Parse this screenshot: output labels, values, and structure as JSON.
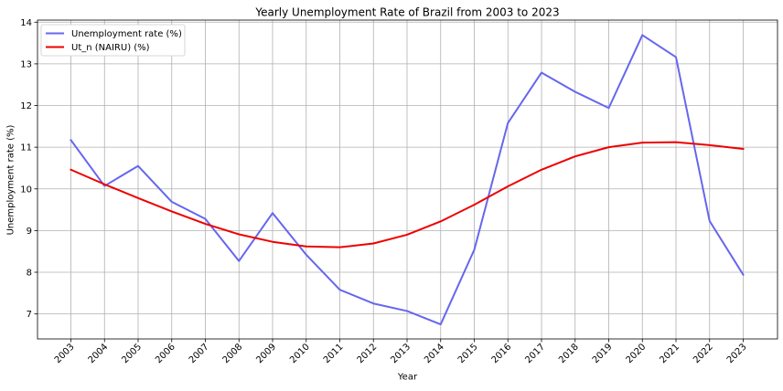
{
  "chart_data": {
    "type": "line",
    "title": "Yearly Unemployment Rate of Brazil from 2003 to 2023",
    "xlabel": "Year",
    "ylabel": "Unemployment rate (%)",
    "x": [
      2003,
      2004,
      2005,
      2006,
      2007,
      2008,
      2009,
      2010,
      2011,
      2012,
      2013,
      2014,
      2015,
      2016,
      2017,
      2018,
      2019,
      2020,
      2021,
      2022,
      2023
    ],
    "xtick_labels": [
      "2003",
      "2004",
      "2005",
      "2006",
      "2007",
      "2008",
      "2009",
      "2010",
      "2011",
      "2012",
      "2013",
      "2014",
      "2015",
      "2016",
      "2017",
      "2018",
      "2019",
      "2020",
      "2021",
      "2022",
      "2023"
    ],
    "ylim": [
      6.4,
      14.05
    ],
    "yticks": [
      7,
      8,
      9,
      10,
      11,
      12,
      13,
      14
    ],
    "grid": true,
    "legend_position": "top-left",
    "series": [
      {
        "name": "Unemployment rate (%)",
        "color": "#6666ee",
        "values": [
          11.17,
          10.07,
          10.55,
          9.69,
          9.28,
          8.27,
          9.42,
          8.42,
          7.58,
          7.25,
          7.07,
          6.75,
          8.54,
          11.58,
          12.79,
          12.33,
          11.94,
          13.69,
          13.16,
          9.23,
          7.94
        ]
      },
      {
        "name": "Ut_n (NAIRU) (%)",
        "color": "#ee0000",
        "values": [
          10.46,
          10.11,
          9.78,
          9.46,
          9.16,
          8.91,
          8.73,
          8.62,
          8.6,
          8.69,
          8.9,
          9.22,
          9.62,
          10.06,
          10.46,
          10.78,
          11.0,
          11.11,
          11.12,
          11.05,
          10.96
        ]
      }
    ]
  }
}
